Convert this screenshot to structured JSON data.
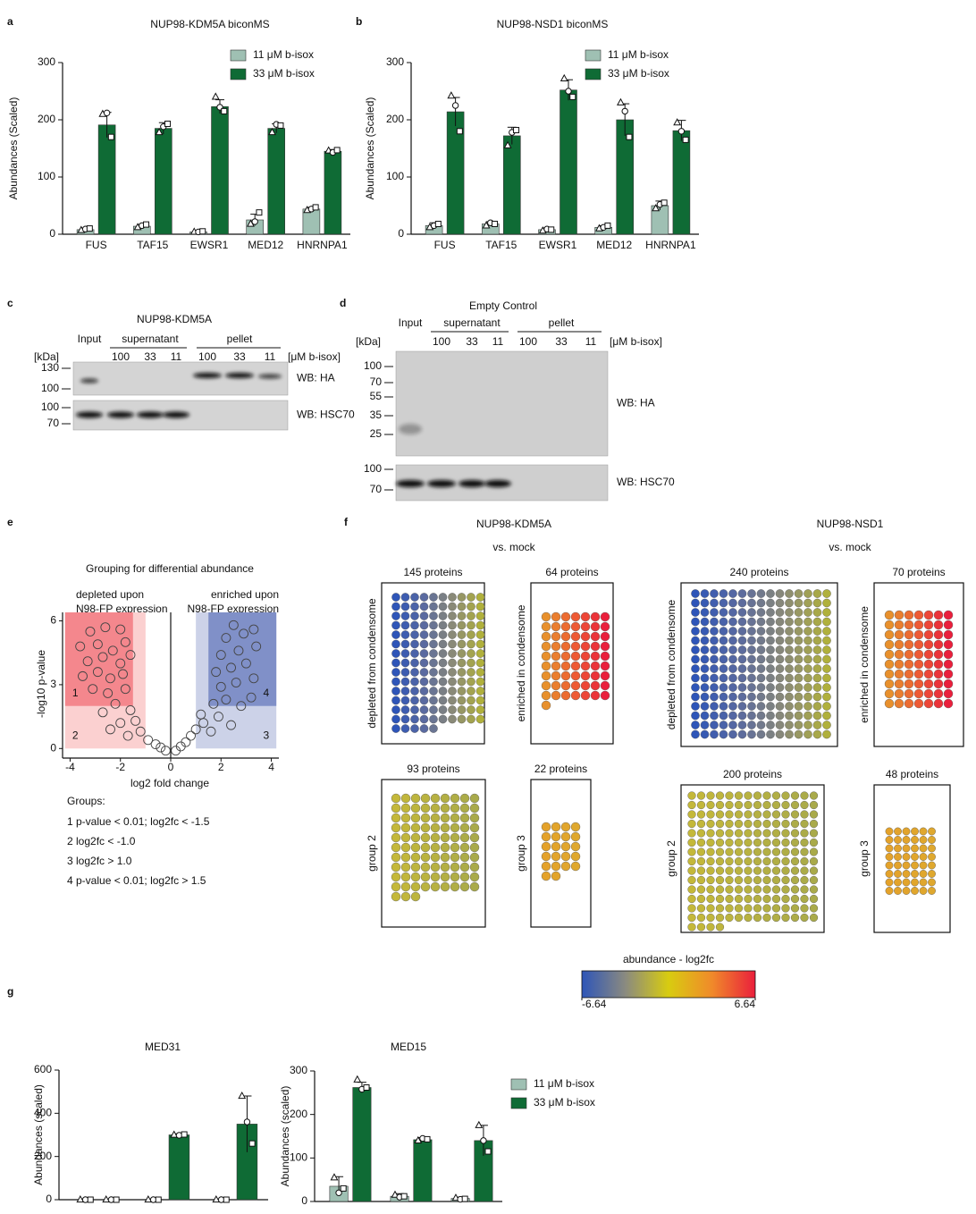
{
  "panel_labels": [
    "a",
    "b",
    "c",
    "d",
    "e",
    "f",
    "g"
  ],
  "chart_data": [
    {
      "type": "bar",
      "title": "NUP98-KDM5A biconMS",
      "ylabel": "Abundances (Scaled)",
      "categories": [
        "FUS",
        "TAF15",
        "EWSR1",
        "MED12",
        "HNRNPA1"
      ],
      "ylim": [
        0,
        300
      ],
      "yticks": [
        0,
        100,
        200,
        300
      ],
      "legend": "top-right",
      "replicate_markers": [
        "triangle",
        "circle",
        "square"
      ],
      "series": [
        {
          "name": "11 μM b-isox",
          "color": "#9fc0b3",
          "values": [
            8,
            14,
            4,
            25,
            44
          ],
          "errors": [
            2,
            3,
            1,
            10,
            3
          ],
          "points": [
            [
              7,
              9,
              10
            ],
            [
              12,
              15,
              17
            ],
            [
              4,
              4,
              5
            ],
            [
              18,
              22,
              38
            ],
            [
              42,
              44,
              47
            ]
          ]
        },
        {
          "name": "33 μM b-isox",
          "color": "#0f6b35",
          "values": [
            191,
            185,
            223,
            185,
            145
          ],
          "errors": [
            22,
            10,
            12,
            8,
            3
          ],
          "points": [
            [
              210,
              212,
              170
            ],
            [
              178,
              188,
              193
            ],
            [
              240,
              222,
              215
            ],
            [
              178,
              192,
              190
            ],
            [
              146,
              143,
              147
            ]
          ]
        }
      ]
    },
    {
      "type": "bar",
      "title": "NUP98-NSD1 biconMS",
      "ylabel": "Abundances (Scaled)",
      "categories": [
        "FUS",
        "TAF15",
        "EWSR1",
        "MED12",
        "HNRNPA1"
      ],
      "ylim": [
        0,
        300
      ],
      "yticks": [
        0,
        100,
        200,
        300
      ],
      "legend": "top-right",
      "replicate_markers": [
        "triangle",
        "circle",
        "square"
      ],
      "series": [
        {
          "name": "11 μM b-isox",
          "color": "#9fc0b3",
          "values": [
            15,
            18,
            8,
            12,
            50
          ],
          "errors": [
            5,
            4,
            3,
            3,
            8
          ],
          "points": [
            [
              12,
              15,
              18
            ],
            [
              15,
              20,
              18
            ],
            [
              6,
              9,
              8
            ],
            [
              10,
              12,
              15
            ],
            [
              45,
              52,
              55
            ]
          ]
        },
        {
          "name": "33 μM b-isox",
          "color": "#0f6b35",
          "values": [
            214,
            172,
            252,
            200,
            181
          ],
          "errors": [
            25,
            15,
            18,
            28,
            18
          ],
          "points": [
            [
              242,
              225,
              180
            ],
            [
              155,
              178,
              182
            ],
            [
              272,
              250,
              240
            ],
            [
              230,
              215,
              170
            ],
            [
              195,
              180,
              165
            ]
          ]
        }
      ]
    },
    {
      "type": "bar",
      "title": "MED31",
      "ylabel": "Abundances (scaled)",
      "categories": [
        null,
        null,
        null
      ],
      "ylim": [
        0,
        600
      ],
      "yticks": [
        0,
        200,
        400,
        600
      ],
      "replicate_markers": [
        "triangle",
        "circle",
        "square"
      ],
      "series": [
        {
          "color": "#9fc0b3",
          "values": [
            0,
            0,
            0
          ],
          "errors": [
            0,
            0,
            0
          ],
          "points": [
            [
              0,
              0,
              0
            ],
            [
              0,
              0,
              0
            ],
            [
              0,
              0,
              0
            ]
          ]
        },
        {
          "color": "#0f6b35",
          "values": [
            0,
            300,
            350
          ],
          "errors": [
            0,
            5,
            130
          ],
          "points": [
            [
              0,
              0,
              0
            ],
            [
              300,
              298,
              302
            ],
            [
              480,
              360,
              260
            ]
          ]
        }
      ]
    },
    {
      "type": "bar",
      "title": "MED15",
      "ylabel": "Abundances (scaled)",
      "categories": [
        null,
        null,
        null
      ],
      "ylim": [
        0,
        300
      ],
      "yticks": [
        0,
        100,
        200,
        300
      ],
      "legend": "right",
      "replicate_markers": [
        "triangle",
        "circle",
        "square"
      ],
      "series": [
        {
          "name": "11 μM b-isox",
          "color": "#9fc0b3",
          "values": [
            35,
            12,
            7
          ],
          "errors": [
            22,
            6,
            3
          ],
          "points": [
            [
              55,
              20,
              30
            ],
            [
              15,
              10,
              12
            ],
            [
              8,
              5,
              6
            ]
          ]
        },
        {
          "name": "33 μM b-isox",
          "color": "#0f6b35",
          "values": [
            262,
            142,
            140
          ],
          "errors": [
            12,
            5,
            35
          ],
          "points": [
            [
              280,
              258,
              262
            ],
            [
              140,
              145,
              143
            ],
            [
              175,
              140,
              115
            ]
          ]
        }
      ]
    },
    {
      "type": "scatter",
      "title": "Grouping for differential abundance",
      "annotations": {
        "left": [
          "depleted upon",
          "N98-FP expression"
        ],
        "right": [
          "enriched upon",
          "N98-FP expression"
        ]
      },
      "xlabel": "log2 fold change",
      "ylabel": "-log10 p-value",
      "xlim": [
        -4.3,
        4.3
      ],
      "ylim": [
        -0.45,
        6.4
      ],
      "xticks": [
        -4,
        -2,
        0,
        2,
        4
      ],
      "yticks": [
        0,
        3,
        6
      ],
      "regions": [
        {
          "label": "2",
          "x": [
            -4.2,
            -1
          ],
          "y": [
            0,
            6.4
          ],
          "color": "#fbd0d0"
        },
        {
          "label": "1",
          "x": [
            -4.2,
            -1.5
          ],
          "y": [
            2,
            6.4
          ],
          "color": "#f4878d"
        },
        {
          "label": "3",
          "x": [
            1,
            4.2
          ],
          "y": [
            0,
            6.4
          ],
          "color": "#ccd2e8"
        },
        {
          "label": "4",
          "x": [
            1.5,
            4.2
          ],
          "y": [
            2,
            6.4
          ],
          "color": "#8090c8"
        }
      ],
      "marker_color": "#444444",
      "x": [
        -3.2,
        -2.6,
        -2.0,
        -3.6,
        -2.9,
        -2.3,
        -1.8,
        -3.3,
        -2.7,
        -2.0,
        -1.6,
        -3.5,
        -2.9,
        -2.4,
        -1.9,
        -3.1,
        -2.5,
        -1.8,
        -2.2,
        -1.6,
        -2.7,
        -2.0,
        -1.4,
        -2.4,
        -1.7,
        -1.2,
        -0.9,
        -0.6,
        -0.4,
        -0.2,
        0.2,
        0.4,
        0.6,
        0.8,
        1.0,
        1.3,
        1.6,
        1.2,
        1.9,
        2.4,
        1.7,
        2.2,
        2.8,
        3.2,
        2.0,
        2.6,
        3.3,
        1.8,
        2.4,
        3.0,
        2.0,
        2.7,
        3.4,
        2.2,
        2.9,
        3.3,
        2.5
      ],
      "y": [
        5.5,
        5.7,
        5.6,
        4.8,
        4.9,
        4.6,
        5.0,
        4.1,
        4.3,
        4.0,
        4.4,
        3.4,
        3.6,
        3.3,
        3.5,
        2.8,
        2.6,
        2.8,
        2.1,
        1.8,
        1.7,
        1.2,
        1.3,
        0.9,
        0.6,
        0.8,
        0.4,
        0.2,
        0.05,
        -0.1,
        -0.1,
        0.1,
        0.3,
        0.6,
        0.9,
        1.2,
        0.8,
        1.6,
        1.5,
        1.1,
        2.1,
        2.3,
        2.0,
        2.4,
        2.9,
        3.1,
        3.3,
        3.6,
        3.8,
        4.0,
        4.4,
        4.6,
        4.8,
        5.2,
        5.4,
        5.6,
        5.8
      ],
      "groups": {
        "title": "Groups:",
        "items": [
          "1 p-value < 0.01; log2fc < -1.5",
          "2 log2fc < -1.0",
          "3 log2fc > 1.0",
          "4 p-value < 0.01; log2fc > 1.5"
        ]
      }
    }
  ],
  "blots": [
    {
      "title": "NUP98-KDM5A",
      "kda": "[kDa]",
      "lanes": {
        "input": "Input",
        "supernatant": "supernatant",
        "pellet": "pellet"
      },
      "concentrations": [
        "100",
        "33",
        "11",
        "100",
        "33",
        "11"
      ],
      "unit": "[μM b-isox]",
      "panels": [
        {
          "markers": [
            "130",
            "100"
          ],
          "label": "WB: HA"
        },
        {
          "markers": [
            "100",
            "70"
          ],
          "label": "WB: HSC70"
        }
      ]
    },
    {
      "title": "Empty Control",
      "kda": "[kDa]",
      "lanes": {
        "input": "Input",
        "supernatant": "supernatant",
        "pellet": "pellet"
      },
      "concentrations": [
        "100",
        "33",
        "11",
        "100",
        "33",
        "11"
      ],
      "unit": "[μM b-isox]",
      "panels": [
        {
          "markers": [
            "100",
            "70",
            "55",
            "35",
            "25"
          ],
          "label": "WB: HA"
        },
        {
          "markers": [
            "100",
            "70"
          ],
          "label": "WB: HSC70"
        }
      ]
    }
  ],
  "dot_grids": [
    {
      "title": [
        "NUP98-KDM5A",
        "vs. mock"
      ],
      "grids": [
        {
          "label": "145 proteins",
          "count": 145,
          "side": "depleted from condensome",
          "colors": [
            "#2e55b8",
            "#5a6aa0",
            "#8a8a78",
            "#b0b03c"
          ]
        },
        {
          "label": "64 proteins",
          "count": 64,
          "side": "enriched in condensome",
          "colors": [
            "#e8902c",
            "#ee5a34",
            "#ea1f3c"
          ]
        },
        {
          "label": "93 proteins",
          "count": 93,
          "side": "group 2",
          "colors": [
            "#c4b83a",
            "#a9aa4a"
          ]
        },
        {
          "label": "22 proteins",
          "count": 22,
          "side": "group 3",
          "colors": [
            "#e4a22a",
            "#dfa82e"
          ]
        }
      ]
    },
    {
      "title": [
        "NUP98-NSD1",
        "vs. mock"
      ],
      "grids": [
        {
          "label": "240 proteins",
          "count": 240,
          "side": "depleted from condensome",
          "colors": [
            "#2e55b8",
            "#5a6aa0",
            "#8a8a78",
            "#b0b03c"
          ]
        },
        {
          "label": "70 proteins",
          "count": 70,
          "side": "enriched in condensome",
          "colors": [
            "#e8902c",
            "#ee5a34",
            "#ea1f3c"
          ]
        },
        {
          "label": "200 proteins",
          "count": 200,
          "side": "group 2",
          "colors": [
            "#c4b83a",
            "#a9aa4a"
          ]
        },
        {
          "label": "48 proteins",
          "count": 48,
          "side": "group 3",
          "colors": [
            "#e4a22a",
            "#dfa82e"
          ]
        }
      ]
    }
  ],
  "colorbar": {
    "label": "abundance - log2fc",
    "lim": [
      -6.64,
      6.64
    ],
    "ticks": [
      -6.64,
      6.64
    ],
    "colors": [
      "#2e55b8",
      "#8a8a80",
      "#d8cc10",
      "#f08a2a",
      "#ea1f3c"
    ]
  }
}
